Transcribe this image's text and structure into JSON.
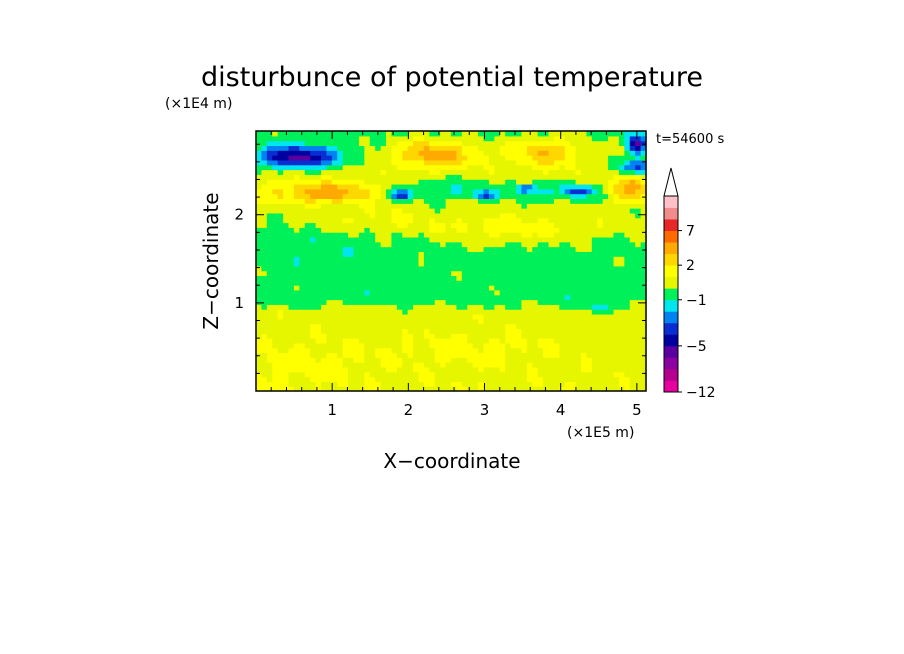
{
  "chart_data": {
    "type": "heatmap",
    "title": "disturbunce of potential temperature",
    "xlabel": "X−coordinate",
    "ylabel": "Z−coordinate",
    "x_unit": "(×1E5 m)",
    "y_unit": "(×1E4 m)",
    "time_label": "t=54600 s",
    "xlim": [
      0,
      5.12
    ],
    "ylim": [
      0,
      2.95
    ],
    "x_ticks": [
      {
        "value": 1,
        "label": "1"
      },
      {
        "value": 2,
        "label": "2"
      },
      {
        "value": 3,
        "label": "3"
      },
      {
        "value": 4,
        "label": "4"
      },
      {
        "value": 5,
        "label": "5"
      }
    ],
    "y_ticks": [
      {
        "value": 1,
        "label": "1"
      },
      {
        "value": 2,
        "label": "2"
      }
    ],
    "colorbar": {
      "levels": [
        -12,
        -10,
        -8,
        -6,
        -5,
        -4,
        -3,
        -2,
        -1,
        0,
        1,
        2,
        3,
        5,
        7,
        9,
        11
      ],
      "colors": [
        "#e600a0",
        "#b4008c",
        "#8c00a0",
        "#5a00a0",
        "#0000a0",
        "#0a2dd2",
        "#0082f0",
        "#00e6f0",
        "#00f05a",
        "#e6f500",
        "#ffff00",
        "#ffd700",
        "#ffaa00",
        "#ff6a00",
        "#e62828",
        "#f08c8c",
        "#ffc0c8"
      ],
      "over_color": "#ffffff",
      "tick_labels": [
        {
          "value": 7,
          "label": "7"
        },
        {
          "value": 2,
          "label": "2"
        },
        {
          "value": -1,
          "label": "−1"
        },
        {
          "value": -5,
          "label": "−5"
        },
        {
          "value": -12,
          "label": "−12"
        }
      ]
    },
    "field": {
      "nx": 72,
      "nz": 54,
      "base_profile": [
        {
          "z": 0.0,
          "v": 0.8
        },
        {
          "z": 0.9,
          "v": 0.5
        },
        {
          "z": 1.05,
          "v": -0.5
        },
        {
          "z": 1.6,
          "v": -0.4
        },
        {
          "z": 2.0,
          "v": 0.2
        },
        {
          "z": 2.35,
          "v": 0.8
        },
        {
          "z": 2.95,
          "v": -0.4
        }
      ],
      "features": [
        {
          "x": 0.55,
          "z": 2.66,
          "rx": 0.55,
          "rz": 0.12,
          "a": -5.6
        },
        {
          "x": 0.95,
          "z": 2.25,
          "rx": 0.7,
          "rz": 0.12,
          "a": 3.0
        },
        {
          "x": 2.35,
          "z": 2.7,
          "rx": 0.55,
          "rz": 0.17,
          "a": 3.4
        },
        {
          "x": 3.8,
          "z": 2.72,
          "rx": 0.45,
          "rz": 0.17,
          "a": 2.8
        },
        {
          "x": 4.9,
          "z": 2.3,
          "rx": 0.25,
          "rz": 0.14,
          "a": 3.0
        },
        {
          "x": 5.0,
          "z": 2.55,
          "rx": 0.2,
          "rz": 0.08,
          "a": -4.0
        },
        {
          "x": 5.0,
          "z": 2.8,
          "rx": 0.12,
          "rz": 0.1,
          "a": -5.0
        },
        {
          "x": 2.5,
          "z": 2.3,
          "rx": 0.8,
          "rz": 0.14,
          "a": -1.7
        },
        {
          "x": 4.05,
          "z": 2.27,
          "rx": 0.7,
          "rz": 0.12,
          "a": -1.7
        },
        {
          "x": 1.9,
          "z": 2.23,
          "rx": 0.15,
          "rz": 0.06,
          "a": -4.0
        },
        {
          "x": 3.0,
          "z": 2.22,
          "rx": 0.15,
          "rz": 0.05,
          "a": -3.0
        },
        {
          "x": 3.55,
          "z": 2.3,
          "rx": 0.12,
          "rz": 0.05,
          "a": -3.0
        },
        {
          "x": 4.25,
          "z": 2.28,
          "rx": 0.15,
          "rz": 0.05,
          "a": -3.0
        },
        {
          "x": 3.4,
          "z": 1.85,
          "rx": 1.3,
          "rz": 0.16,
          "a": 1.4
        },
        {
          "x": 1.6,
          "z": 1.95,
          "rx": 0.6,
          "rz": 0.12,
          "a": 0.9
        },
        {
          "x": 0.9,
          "z": 1.65,
          "rx": 0.8,
          "rz": 0.18,
          "a": -0.4
        },
        {
          "x": 0.6,
          "z": 0.35,
          "rx": 1.2,
          "rz": 0.25,
          "a": 0.6
        },
        {
          "x": 3.0,
          "z": 0.5,
          "rx": 1.0,
          "rz": 0.2,
          "a": 0.6
        },
        {
          "x": 4.5,
          "z": 0.95,
          "rx": 0.35,
          "rz": 0.05,
          "a": -1.0
        }
      ],
      "noise_amplitude": 0.35
    }
  }
}
